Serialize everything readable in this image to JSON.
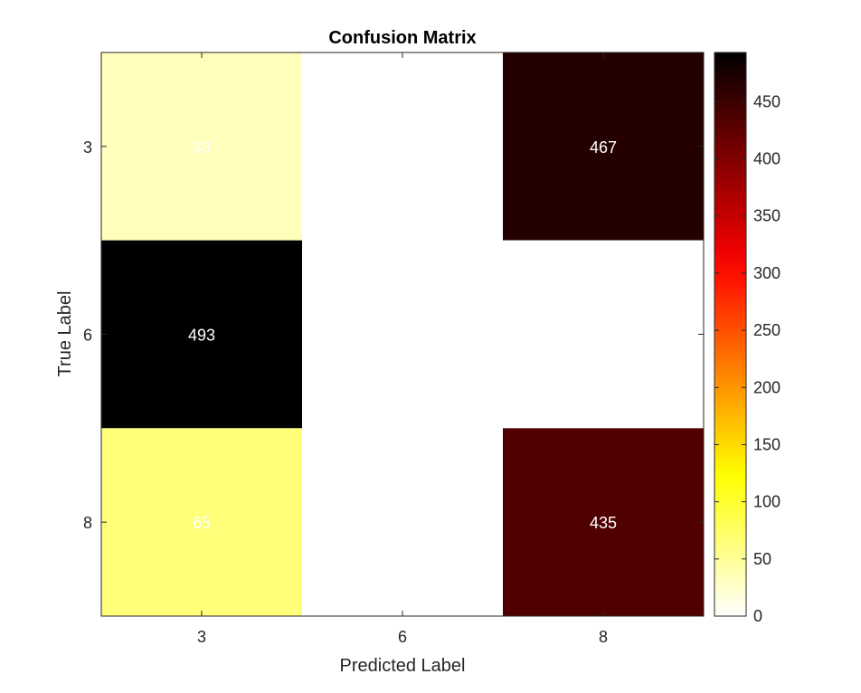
{
  "chart_data": {
    "type": "heatmap",
    "title": "Confusion Matrix",
    "xlabel": "Predicted Label",
    "ylabel": "True Label",
    "x_categories": [
      "3",
      "6",
      "8"
    ],
    "y_categories": [
      "3",
      "6",
      "8"
    ],
    "values": [
      [
        33,
        0,
        467
      ],
      [
        493,
        0,
        0
      ],
      [
        65,
        0,
        435
      ]
    ],
    "cell_labels": [
      [
        "33",
        "",
        "467"
      ],
      [
        "493",
        "",
        ""
      ],
      [
        "65",
        "",
        "435"
      ]
    ],
    "colormap": "hot (reversed)",
    "colorbar": {
      "range": [
        0,
        493
      ],
      "ticks": [
        0,
        50,
        100,
        150,
        200,
        250,
        300,
        350,
        400,
        450
      ]
    },
    "colors": {
      "axis": "#262626",
      "cell_text": "#ffffff"
    }
  }
}
